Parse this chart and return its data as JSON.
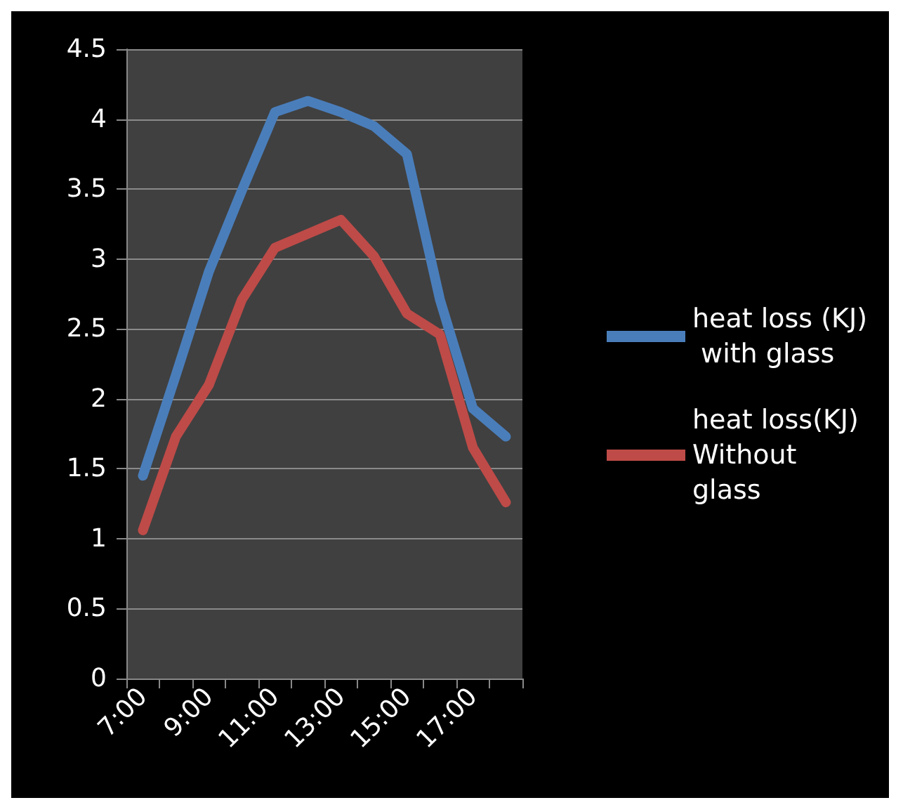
{
  "chart_data": {
    "type": "line",
    "categories": [
      "7:00",
      null,
      "9:00",
      null,
      "11:00",
      null,
      "13:00",
      null,
      "15:00",
      null,
      "17:00",
      null
    ],
    "series": [
      {
        "name": "heat loss (KJ) with glass",
        "color": "#4a7ebb",
        "values": [
          1.45,
          2.17,
          2.91,
          3.49,
          4.05,
          4.13,
          4.05,
          3.95,
          3.75,
          2.71,
          1.93,
          1.73
        ]
      },
      {
        "name": "heat loss(KJ) Without glass",
        "color": "#be4b48",
        "values": [
          1.06,
          1.73,
          2.1,
          2.71,
          3.08,
          3.18,
          3.28,
          3.02,
          2.61,
          2.46,
          1.65,
          1.26
        ]
      }
    ],
    "ylim": [
      0,
      4.5
    ],
    "yticks": [
      0,
      0.5,
      1,
      1.5,
      2,
      2.5,
      3,
      3.5,
      4,
      4.5
    ],
    "grid": "y",
    "legend": "right",
    "line_style": "solid"
  }
}
